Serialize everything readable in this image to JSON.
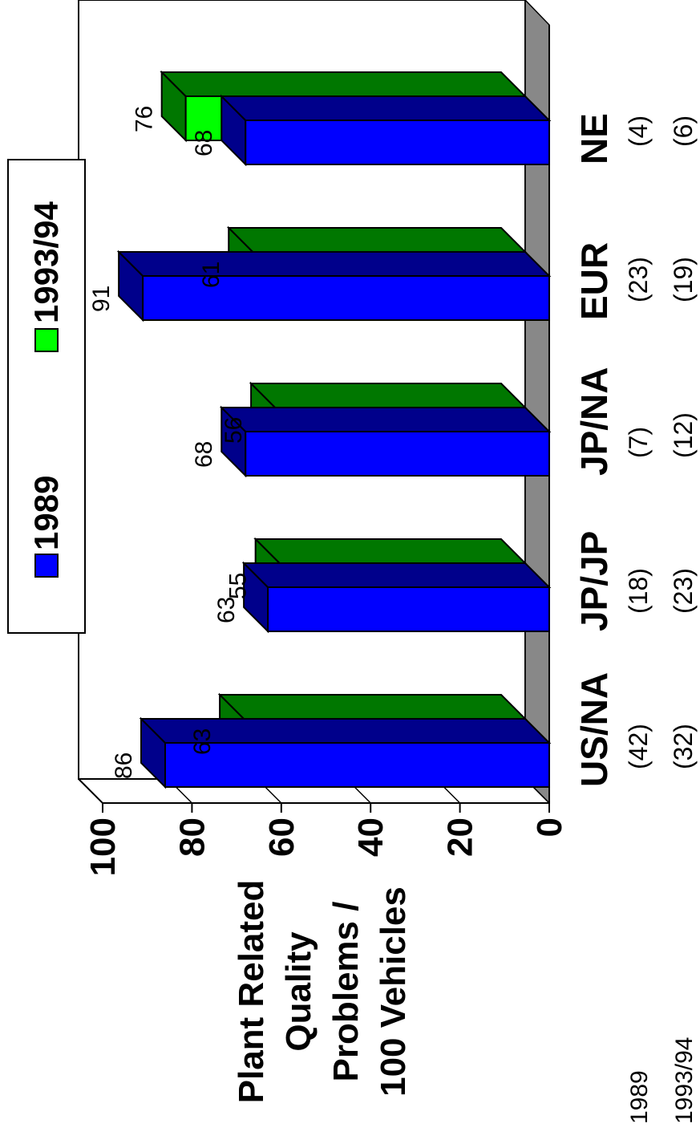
{
  "chart_data": {
    "type": "bar",
    "ylabel": [
      "Plant Related",
      "Quality",
      "Problems /",
      "100 Vehicles"
    ],
    "ylim": [
      0,
      100
    ],
    "yticks": [
      0,
      20,
      40,
      60,
      80,
      100
    ],
    "categories": [
      "US/NA",
      "JP/JP",
      "JP/NA",
      "EUR",
      "NE"
    ],
    "series": [
      {
        "name": "1989",
        "color": "#0000ff",
        "values": [
          86,
          63,
          68,
          91,
          68
        ],
        "sample_sizes": [
          "(42)",
          "(18)",
          "(7)",
          "(23)",
          "(4)"
        ]
      },
      {
        "name": "1993/94",
        "color": "#00ff00",
        "values": [
          63,
          55,
          56,
          61,
          76
        ],
        "sample_sizes": [
          "(32)",
          "(23)",
          "(12)",
          "(19)",
          "(6)"
        ]
      }
    ],
    "sample_row_labels": [
      "1989",
      "1993/94"
    ],
    "legend_position": "top",
    "grid": false,
    "three_d": true,
    "orientation": "rotated-90-counterclockwise"
  }
}
